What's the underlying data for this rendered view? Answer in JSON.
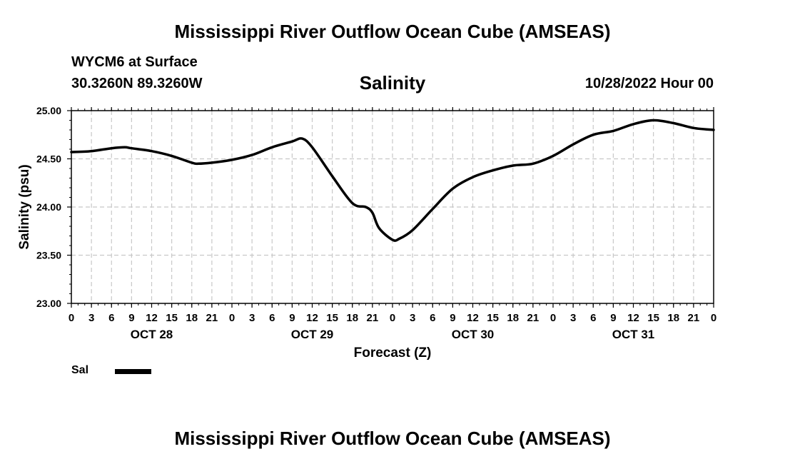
{
  "title": "Mississippi River Outflow Ocean Cube (AMSEAS)",
  "footer_title": "Mississippi River Outflow Ocean Cube (AMSEAS)",
  "station": "WYCM6 at Surface",
  "coords": "30.3260N  89.3260W",
  "subtitle": "Salinity",
  "datetime": "10/28/2022 Hour 00",
  "legend": {
    "label": "Sal",
    "color": "#000000"
  },
  "chart_data": {
    "type": "line",
    "title": "Salinity",
    "xlabel": "Forecast (Z)",
    "ylabel": "Salinity (psu)",
    "x_unit": "forecast hour",
    "xlim": [
      0,
      96
    ],
    "ylim": [
      23.0,
      25.0
    ],
    "y_ticks": [
      {
        "value": 23.0,
        "label": "23.00"
      },
      {
        "value": 23.5,
        "label": "23.50"
      },
      {
        "value": 24.0,
        "label": "24.00"
      },
      {
        "value": 24.5,
        "label": "24.50"
      },
      {
        "value": 25.0,
        "label": "25.00"
      }
    ],
    "x_ticks": [
      {
        "hour": 0,
        "label": "0"
      },
      {
        "hour": 3,
        "label": "3"
      },
      {
        "hour": 6,
        "label": "6"
      },
      {
        "hour": 9,
        "label": "9"
      },
      {
        "hour": 12,
        "label": "12"
      },
      {
        "hour": 15,
        "label": "15"
      },
      {
        "hour": 18,
        "label": "18"
      },
      {
        "hour": 21,
        "label": "21"
      },
      {
        "hour": 24,
        "label": "0"
      },
      {
        "hour": 27,
        "label": "3"
      },
      {
        "hour": 30,
        "label": "6"
      },
      {
        "hour": 33,
        "label": "9"
      },
      {
        "hour": 36,
        "label": "12"
      },
      {
        "hour": 39,
        "label": "15"
      },
      {
        "hour": 42,
        "label": "18"
      },
      {
        "hour": 45,
        "label": "21"
      },
      {
        "hour": 48,
        "label": "0"
      },
      {
        "hour": 51,
        "label": "3"
      },
      {
        "hour": 54,
        "label": "6"
      },
      {
        "hour": 57,
        "label": "9"
      },
      {
        "hour": 60,
        "label": "12"
      },
      {
        "hour": 63,
        "label": "15"
      },
      {
        "hour": 66,
        "label": "18"
      },
      {
        "hour": 69,
        "label": "21"
      },
      {
        "hour": 72,
        "label": "0"
      },
      {
        "hour": 75,
        "label": "3"
      },
      {
        "hour": 78,
        "label": "6"
      },
      {
        "hour": 81,
        "label": "9"
      },
      {
        "hour": 84,
        "label": "12"
      },
      {
        "hour": 87,
        "label": "15"
      },
      {
        "hour": 90,
        "label": "18"
      },
      {
        "hour": 93,
        "label": "21"
      },
      {
        "hour": 96,
        "label": "0"
      }
    ],
    "day_labels": [
      {
        "hour": 12,
        "label": "OCT 28"
      },
      {
        "hour": 36,
        "label": "OCT 29"
      },
      {
        "hour": 60,
        "label": "OCT 30"
      },
      {
        "hour": 84,
        "label": "OCT 31"
      }
    ],
    "series": [
      {
        "name": "Sal",
        "x": [
          0,
          3,
          6,
          8,
          9,
          12,
          15,
          18,
          19,
          21,
          24,
          27,
          30,
          33,
          34.5,
          36,
          39,
          42,
          44,
          45,
          46,
          48,
          49,
          51,
          54,
          57,
          60,
          63,
          66,
          69,
          72,
          75,
          78,
          81,
          84,
          87,
          90,
          93,
          96
        ],
        "y": [
          24.57,
          24.58,
          24.61,
          24.62,
          24.61,
          24.58,
          24.53,
          24.46,
          24.45,
          24.46,
          24.49,
          24.54,
          24.62,
          24.68,
          24.71,
          24.62,
          24.32,
          24.04,
          24.0,
          23.94,
          23.78,
          23.66,
          23.67,
          23.76,
          23.98,
          24.19,
          24.31,
          24.38,
          24.43,
          24.45,
          24.53,
          24.65,
          24.75,
          24.79,
          24.86,
          24.9,
          24.87,
          24.82,
          24.8
        ],
        "color": "#000000"
      }
    ]
  }
}
